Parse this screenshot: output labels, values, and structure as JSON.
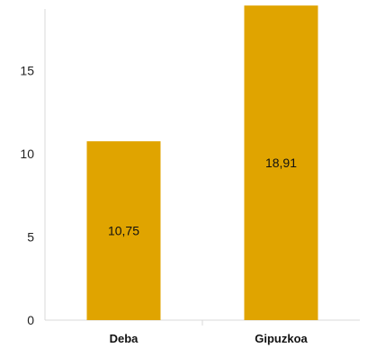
{
  "chart_data": {
    "type": "bar",
    "categories": [
      "Deba",
      "Gipuzkoa"
    ],
    "values": [
      10.75,
      18.91
    ],
    "data_labels": [
      "10,75",
      "18,91"
    ],
    "ylim": [
      0,
      20
    ],
    "yticks": [
      0,
      5,
      10,
      15
    ],
    "ytick_labels": [
      "0",
      "5",
      "10",
      "15"
    ],
    "title": "",
    "xlabel": "",
    "ylabel": "",
    "grid": false,
    "legend": "none",
    "colors": {
      "bar": "#E0A400",
      "axis": "#D9D9D9",
      "text": "#222222"
    }
  }
}
